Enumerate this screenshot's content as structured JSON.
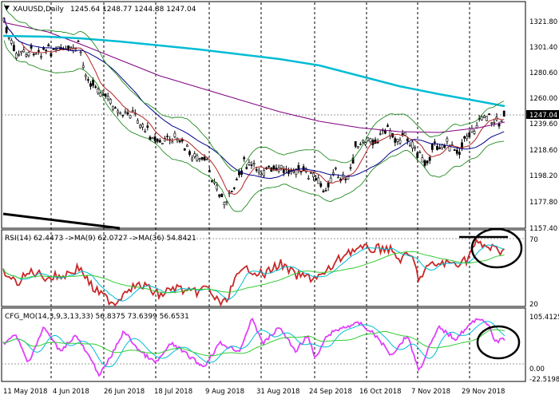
{
  "main": {
    "symbol": "XAUUSD,Daily",
    "ohlc": "1245.64 1248.77 1244.88 1247.04",
    "price_ticks": [
      "1321.80",
      "1301.40",
      "1280.60",
      "1260.00",
      "1239.60",
      "1218.60",
      "1198.20",
      "1177.80",
      "1157.40"
    ],
    "current_price": "1247.04",
    "current_price_badge_color": "#000000"
  },
  "rsi": {
    "label": "RSI(14) 62.4473 ->MA(9) 62.0727 ->MA(36) 54.8421",
    "ticks": [
      "70",
      "20"
    ]
  },
  "cfg": {
    "label": "CFG_MO(14,3,9,3,13,33) 56.8375 73.6399 56.6531",
    "ticks": [
      "105.4125",
      "0.00",
      "-22.5198"
    ]
  },
  "x_axis": {
    "dates": [
      "11 May 2018",
      "4 Jun 2018",
      "26 Jun 2018",
      "18 Jul 2018",
      "9 Aug 2018",
      "31 Aug 2018",
      "24 Sep 2018",
      "16 Oct 2018",
      "7 Nov 2018",
      "29 Nov 2018"
    ]
  },
  "colors": {
    "ma_fast": "#b22222",
    "ma_medium": "#800080",
    "ma_slow": "#00008b",
    "ma_long": "#00bcd4",
    "bollinger": "#228b22",
    "rsi": "#c62828",
    "rsi_ma9": "#00bcd4",
    "rsi_ma36": "#32cd32",
    "cfg_main": "#e040fb",
    "cfg_signal": "#00bcd4",
    "cfg_slow": "#32cd32",
    "annotation": "#000000"
  },
  "chart_data": {
    "type": "candlestick",
    "title": "XAUUSD,Daily",
    "xlabel": "",
    "ylabel": "",
    "x": [
      "11 May 2018",
      "4 Jun 2018",
      "26 Jun 2018",
      "18 Jul 2018",
      "9 Aug 2018",
      "31 Aug 2018",
      "24 Sep 2018",
      "16 Oct 2018",
      "7 Nov 2018",
      "29 Nov 2018"
    ],
    "price_close_approx": [
      1318,
      1300,
      1252,
      1224,
      1182,
      1205,
      1198,
      1228,
      1226,
      1247
    ],
    "ylim": [
      1157.4,
      1321.8
    ],
    "indicators": {
      "rsi_last": 62.4473,
      "rsi_ma9_last": 62.0727,
      "rsi_ma36_last": 54.8421,
      "cfg_mo_last": [
        56.8375,
        73.6399,
        56.6531
      ]
    },
    "grid": true
  }
}
